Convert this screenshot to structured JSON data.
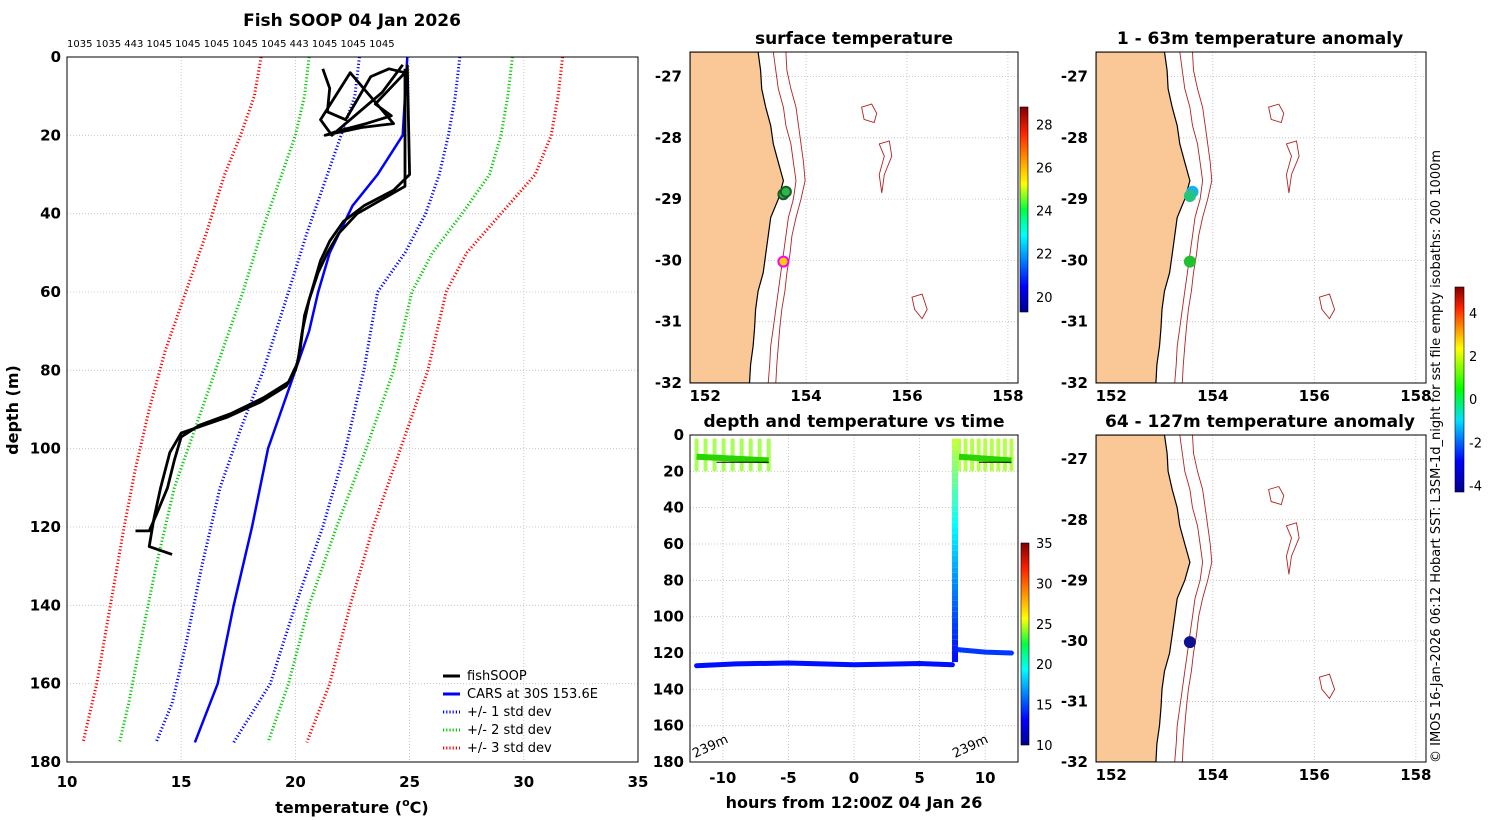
{
  "chart_data": [
    {
      "type": "line",
      "id": "profile",
      "title": "Fish SOOP 04 Jan 2026",
      "xlabel": "temperature (",
      "xlabel_sup": "o",
      "xlabel_tail": "C)",
      "ylabel": "depth (m)",
      "xlim": [
        10,
        35
      ],
      "ylim": [
        0,
        180
      ],
      "xticks": [
        10,
        15,
        20,
        25,
        30,
        35
      ],
      "yticks": [
        0,
        20,
        40,
        60,
        80,
        100,
        120,
        140,
        160,
        180
      ],
      "top_labels": "1035 1035 443 1045 1045 1045 1045 1045 443 1045 1045 1045",
      "legend": [
        {
          "label": "fishSOOP",
          "color": "#000000",
          "style": "solid"
        },
        {
          "label": "CARS at 30S 153.6E",
          "color": "#0000ff",
          "style": "solid"
        },
        {
          "label": "+/- 1 std dev",
          "color": "#0000ff",
          "style": "dotted"
        },
        {
          "label": "+/- 2 std dev",
          "color": "#00cc00",
          "style": "dotted"
        },
        {
          "label": "+/- 3 std dev",
          "color": "#ff0000",
          "style": "dotted"
        }
      ],
      "series": [
        {
          "name": "CARS mean",
          "color": "#0000ff",
          "dash": false,
          "points": [
            [
              24.9,
              0
            ],
            [
              24.7,
              20
            ],
            [
              23.6,
              30
            ],
            [
              22.5,
              38
            ],
            [
              21.5,
              50
            ],
            [
              21.0,
              60
            ],
            [
              20.6,
              70
            ],
            [
              20.0,
              80
            ],
            [
              19.4,
              90
            ],
            [
              18.8,
              100
            ],
            [
              18.1,
              120
            ],
            [
              17.3,
              140
            ],
            [
              16.6,
              160
            ],
            [
              15.6,
              175
            ]
          ]
        },
        {
          "name": "minus 1 std",
          "color": "#0000ff",
          "dash": true,
          "points": [
            [
              22.8,
              0
            ],
            [
              22.6,
              10
            ],
            [
              22.0,
              20
            ],
            [
              21.4,
              30
            ],
            [
              20.5,
              45
            ],
            [
              19.7,
              60
            ],
            [
              18.6,
              80
            ],
            [
              17.6,
              95
            ],
            [
              16.7,
              110
            ],
            [
              15.9,
              130
            ],
            [
              15.2,
              150
            ],
            [
              14.6,
              165
            ],
            [
              13.9,
              175
            ]
          ]
        },
        {
          "name": "plus 1 std",
          "color": "#0000ff",
          "dash": true,
          "points": [
            [
              27.2,
              0
            ],
            [
              27.0,
              10
            ],
            [
              26.7,
              20
            ],
            [
              26.3,
              30
            ],
            [
              25.7,
              40
            ],
            [
              24.8,
              50
            ],
            [
              23.6,
              60
            ],
            [
              23.0,
              80
            ],
            [
              22.2,
              100
            ],
            [
              21.2,
              120
            ],
            [
              20.0,
              140
            ],
            [
              18.9,
              160
            ],
            [
              17.3,
              175
            ]
          ]
        },
        {
          "name": "minus 2 std",
          "color": "#00cc00",
          "dash": true,
          "points": [
            [
              20.6,
              0
            ],
            [
              20.4,
              10
            ],
            [
              20.0,
              20
            ],
            [
              19.4,
              30
            ],
            [
              18.5,
              45
            ],
            [
              17.7,
              60
            ],
            [
              16.5,
              80
            ],
            [
              15.6,
              95
            ],
            [
              14.7,
              110
            ],
            [
              13.9,
              130
            ],
            [
              13.2,
              150
            ],
            [
              12.7,
              165
            ],
            [
              12.3,
              175
            ]
          ]
        },
        {
          "name": "plus 2 std",
          "color": "#00cc00",
          "dash": true,
          "points": [
            [
              29.5,
              0
            ],
            [
              29.3,
              10
            ],
            [
              29.0,
              20
            ],
            [
              28.5,
              30
            ],
            [
              27.3,
              40
            ],
            [
              26.0,
              50
            ],
            [
              25.1,
              60
            ],
            [
              24.3,
              80
            ],
            [
              23.1,
              100
            ],
            [
              21.8,
              120
            ],
            [
              20.6,
              140
            ],
            [
              19.7,
              160
            ],
            [
              18.8,
              175
            ]
          ]
        },
        {
          "name": "minus 3 std",
          "color": "#ff0000",
          "dash": true,
          "points": [
            [
              18.5,
              0
            ],
            [
              18.2,
              10
            ],
            [
              17.6,
              20
            ],
            [
              16.9,
              30
            ],
            [
              16.1,
              45
            ],
            [
              15.2,
              60
            ],
            [
              14.3,
              75
            ],
            [
              13.6,
              90
            ],
            [
              13.0,
              105
            ],
            [
              12.5,
              120
            ],
            [
              11.9,
              140
            ],
            [
              11.3,
              160
            ],
            [
              10.7,
              175
            ]
          ]
        },
        {
          "name": "plus 3 std",
          "color": "#ff0000",
          "dash": true,
          "points": [
            [
              31.7,
              0
            ],
            [
              31.5,
              10
            ],
            [
              31.2,
              20
            ],
            [
              30.5,
              30
            ],
            [
              29.0,
              40
            ],
            [
              27.5,
              50
            ],
            [
              26.6,
              60
            ],
            [
              25.8,
              80
            ],
            [
              24.6,
              100
            ],
            [
              23.4,
              120
            ],
            [
              22.4,
              140
            ],
            [
              21.5,
              160
            ],
            [
              20.5,
              175
            ]
          ]
        }
      ],
      "fish_series": [
        {
          "name": "fishSOOP cast 1",
          "color": "#000000",
          "points": [
            [
              24.9,
              2
            ],
            [
              25.0,
              30
            ],
            [
              24.3,
              34
            ],
            [
              23.0,
              38
            ],
            [
              22.1,
              42
            ],
            [
              21.5,
              47
            ],
            [
              21.1,
              52
            ],
            [
              20.8,
              58
            ],
            [
              20.4,
              66
            ],
            [
              20.2,
              75
            ],
            [
              20.0,
              80
            ],
            [
              19.6,
              84
            ],
            [
              18.5,
              88
            ],
            [
              17.0,
              92
            ],
            [
              16.0,
              94
            ],
            [
              15.0,
              96
            ],
            [
              14.5,
              101
            ],
            [
              14.1,
              110
            ],
            [
              13.8,
              118
            ],
            [
              13.6,
              125
            ],
            [
              14.6,
              127
            ]
          ]
        },
        {
          "name": "fishSOOP cast 2",
          "color": "#000000",
          "points": [
            [
              24.8,
              3
            ],
            [
              24.8,
              33
            ],
            [
              23.9,
              36
            ],
            [
              22.7,
              40
            ],
            [
              21.9,
              45
            ],
            [
              21.4,
              50
            ],
            [
              21.0,
              55
            ],
            [
              20.6,
              62
            ],
            [
              20.3,
              70
            ],
            [
              20.1,
              78
            ],
            [
              19.7,
              83
            ],
            [
              18.6,
              87
            ],
            [
              17.2,
              91
            ],
            [
              15.8,
              94
            ],
            [
              15.0,
              97
            ],
            [
              14.7,
              103
            ],
            [
              14.4,
              110
            ],
            [
              13.9,
              117
            ],
            [
              13.6,
              121
            ],
            [
              13.0,
              121
            ]
          ]
        },
        {
          "name": "fishSOOP surface",
          "color": "#000000",
          "points": [
            [
              21.2,
              3
            ],
            [
              21.5,
              8
            ],
            [
              21.4,
              14
            ],
            [
              22.2,
              16
            ],
            [
              22.6,
              12
            ],
            [
              23.3,
              5
            ],
            [
              24.1,
              3
            ],
            [
              24.8,
              4
            ],
            [
              23.5,
              12
            ],
            [
              24.2,
              15
            ],
            [
              23.1,
              17
            ],
            [
              21.8,
              19
            ],
            [
              21.3,
              20
            ],
            [
              22.9,
              18
            ],
            [
              24.3,
              17
            ],
            [
              22.4,
              4
            ],
            [
              21.1,
              16
            ],
            [
              21.6,
              20
            ],
            [
              23.8,
              9
            ],
            [
              24.7,
              2
            ]
          ]
        }
      ]
    },
    {
      "type": "scatter",
      "id": "timeseries",
      "title": "depth and temperature vs time",
      "xlabel": "hours from 12:00Z 04 Jan 26",
      "ylabel": "",
      "xlim": [
        -12.5,
        12.5
      ],
      "ylim": [
        0,
        180
      ],
      "xticks": [
        -10,
        -5,
        0,
        5,
        10
      ],
      "yticks": [
        0,
        20,
        40,
        60,
        80,
        100,
        120,
        140,
        160,
        180
      ],
      "bottom_labels": [
        "239m",
        "239m"
      ],
      "colorbar": {
        "min": 10,
        "max": 35,
        "ticks": [
          10,
          15,
          20,
          25,
          30,
          35
        ]
      },
      "segments": [
        {
          "name": "deep track",
          "temp": 13.5,
          "points": [
            [
              -12.0,
              127
            ],
            [
              -9,
              126
            ],
            [
              -5,
              125.5
            ],
            [
              0,
              126.5
            ],
            [
              5,
              125.8
            ],
            [
              7.5,
              126.5
            ]
          ]
        },
        {
          "name": "upper track",
          "temp": 14.5,
          "points": [
            [
              7.7,
              118
            ],
            [
              10,
              119.5
            ],
            [
              12,
              120
            ]
          ]
        },
        {
          "name": "surface cluster 1",
          "temp": 23.5,
          "range": [
            -12,
            -6.5
          ],
          "depth": [
            2,
            20
          ]
        },
        {
          "name": "surface cluster 2",
          "temp": 23.8,
          "range": [
            8,
            12
          ],
          "depth": [
            2,
            20
          ]
        },
        {
          "name": "ascent",
          "hours": 7.7,
          "depth": [
            125,
            2
          ]
        }
      ]
    }
  ],
  "maps": [
    {
      "id": "map-sst",
      "title": "surface temperature",
      "xticks": [
        "152",
        "154",
        "156",
        "158"
      ],
      "yticks": [
        "-27",
        "-28",
        "-29",
        "-30",
        "-31",
        "-32"
      ],
      "colorbar": {
        "ticks": [
          "20",
          "22",
          "24",
          "26",
          "28"
        ],
        "min": 19.3,
        "max": 28.8
      },
      "points": [
        {
          "lon": 153.55,
          "lat": -28.92,
          "color": "#2bb84a",
          "edge": "#1a5b2a"
        },
        {
          "lon": 153.6,
          "lat": -28.88,
          "color": "#2bb84a",
          "edge": "#1a5b2a"
        },
        {
          "lon": 153.55,
          "lat": -30.02,
          "color": "#ffd000",
          "edge": "#ff00ff"
        }
      ]
    },
    {
      "id": "map-anom-1",
      "title": "1 - 63m temperature anomaly",
      "xticks": [
        "152",
        "154",
        "156",
        "158"
      ],
      "yticks": [
        "-27",
        "-28",
        "-29",
        "-30",
        "-31",
        "-32"
      ],
      "points": [
        {
          "lon": 153.6,
          "lat": -28.88,
          "color": "#19b3e6",
          "edge": "#19b3e6"
        },
        {
          "lon": 153.55,
          "lat": -28.95,
          "color": "#22c480",
          "edge": "#22c480"
        },
        {
          "lon": 153.55,
          "lat": -30.02,
          "color": "#22c030",
          "edge": "#22c030"
        }
      ]
    },
    {
      "id": "map-anom-2",
      "title": "64 - 127m temperature anomaly",
      "xticks": [
        "152",
        "154",
        "156",
        "158"
      ],
      "yticks": [
        "-27",
        "-28",
        "-29",
        "-30",
        "-31",
        "-32"
      ],
      "points": [
        {
          "lon": 153.55,
          "lat": -30.02,
          "color": "#101090",
          "edge": "#101090"
        }
      ]
    }
  ],
  "anomaly_colorbar": {
    "ticks": [
      "-4",
      "-2",
      "0",
      "2",
      "4"
    ],
    "min": -4.3,
    "max": 5.2
  },
  "side_note": "© IMOS 16-Jan-2026 06:12 Hobart SST: L3SM-1d_night for  sst file empty isobaths: 200  1000m"
}
